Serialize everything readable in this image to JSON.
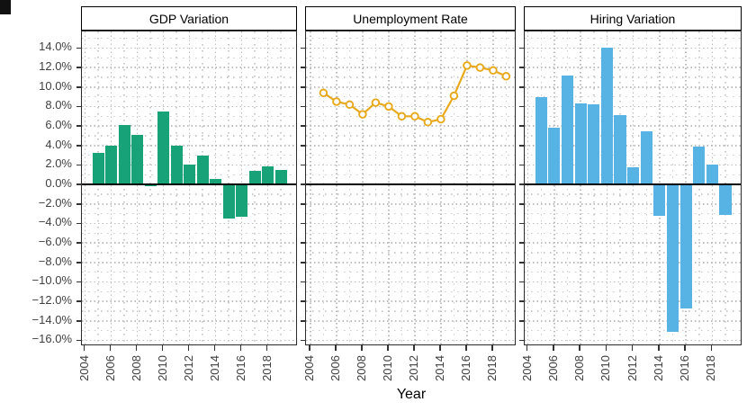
{
  "figure": {
    "background": "#ffffff",
    "xlabel": "Year"
  },
  "chart_data": {
    "type": "faceted",
    "xlabel": "Year",
    "years": [
      2005,
      2006,
      2007,
      2008,
      2009,
      2010,
      2011,
      2012,
      2013,
      2014,
      2015,
      2016,
      2017,
      2018,
      2019
    ],
    "x_tick_years": [
      2004,
      2006,
      2008,
      2010,
      2012,
      2014,
      2016,
      2018
    ],
    "x_tick_labels": [
      "2004",
      "2006",
      "2008",
      "2010",
      "2012",
      "2014",
      "2016",
      "2018"
    ],
    "y_tick_values": [
      14,
      12,
      10,
      8,
      6,
      4,
      2,
      0,
      -2,
      -4,
      -6,
      -8,
      -10,
      -12,
      -14,
      -16
    ],
    "y_tick_labels": [
      "14.0%",
      "12.0%",
      "10.0%",
      "8.0%",
      "6.0%",
      "4.0%",
      "2.0%",
      "0.0%",
      "−2.0%",
      "−4.0%",
      "−6.0%",
      "−8.0%",
      "−10.0%",
      "−12.0%",
      "−14.0%",
      "−16.0%"
    ],
    "ylim": [
      -16.6,
      15.7
    ],
    "grid": "dotted",
    "zero_line": true,
    "panels": [
      {
        "type": "bar",
        "title": "GDP Variation",
        "color": "#17a277",
        "xlim": [
          2003.75,
          2020.3
        ],
        "values": [
          3.2,
          4.0,
          6.1,
          5.1,
          -0.2,
          7.5,
          4.0,
          2.0,
          3.0,
          0.6,
          -3.5,
          -3.3,
          1.4,
          1.9,
          1.5
        ]
      },
      {
        "type": "line",
        "title": "Unemployment Rate",
        "color": "#e8a91c",
        "marker": "open-circle",
        "xlim": [
          2003.66,
          2019.8
        ],
        "values": [
          9.4,
          8.5,
          8.2,
          7.2,
          8.4,
          8.0,
          7.0,
          7.0,
          6.4,
          6.7,
          9.1,
          12.2,
          12.0,
          11.7,
          11.1
        ]
      },
      {
        "type": "bar",
        "title": "Hiring Variation",
        "color": "#57b3e3",
        "xlim": [
          2003.75,
          2020.3
        ],
        "values": [
          9.0,
          5.8,
          11.2,
          8.3,
          8.2,
          14.0,
          7.1,
          1.8,
          5.5,
          -3.2,
          -15.1,
          -12.7,
          3.9,
          2.0,
          -3.1
        ]
      }
    ],
    "style": {
      "grid_color": "#c3c3c3",
      "axis_text_color": "#404040",
      "panel_border_color": "#2b2b2b",
      "zero_line_color": "#000000"
    }
  }
}
